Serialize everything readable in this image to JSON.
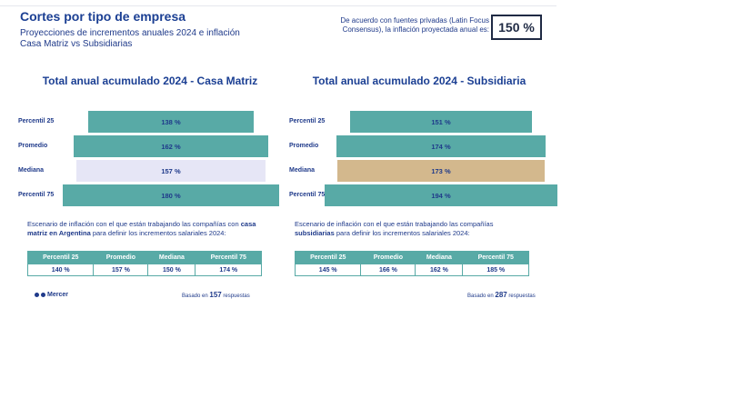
{
  "header": {
    "title": "Cortes por tipo de empresa",
    "subtitle": "Proyecciones de incrementos anuales 2024 e inflación Casa Matriz vs Subsidiarias",
    "inflation_note": "De acuerdo con fuentes privadas (Latin Focus Consensus), la inflación proyectada anual es:",
    "inflation_value": "150 %"
  },
  "chart_data": [
    {
      "type": "bar",
      "title": "Total anual acumulado 2024 - Casa Matriz",
      "categories": [
        "Percentil 25",
        "Promedio",
        "Mediana",
        "Percentil 75"
      ],
      "values": [
        138,
        162,
        157,
        180
      ],
      "labels": [
        "138 %",
        "162 %",
        "157 %",
        "180 %"
      ],
      "colors": [
        "#58aaa6",
        "#58aaa6",
        "#e6e6f6",
        "#58aaa6"
      ],
      "unit": "%"
    },
    {
      "type": "bar",
      "title": "Total anual acumulado 2024 - Subsidiaria",
      "categories": [
        "Percentil 25",
        "Promedio",
        "Mediana",
        "Percentil 75"
      ],
      "values": [
        151,
        174,
        173,
        194
      ],
      "labels": [
        "151 %",
        "174 %",
        "173 %",
        "194 %"
      ],
      "colors": [
        "#58aaa6",
        "#58aaa6",
        "#d3b88d",
        "#58aaa6"
      ],
      "unit": "%"
    }
  ],
  "left": {
    "scenario_pre": "Escenario de inflación con el que están trabajando las compañías con ",
    "scenario_bold": "casa matriz en Argentina",
    "scenario_post": " para definir los incrementos salariales 2024:",
    "table_headers": [
      "Percentil 25",
      "Promedio",
      "Mediana",
      "Percentil 75"
    ],
    "table_values": [
      "140 %",
      "157 %",
      "150 %",
      "174 %"
    ],
    "based_pre": "Basado en",
    "based_count": "157",
    "based_post": "respuestas"
  },
  "right": {
    "scenario_pre": "Escenario de inflación con el que están trabajando las compañías ",
    "scenario_bold": "subsidiarias",
    "scenario_post": " para definir los incrementos salariales 2024:",
    "table_headers": [
      "Percentil 25",
      "Promedio",
      "Mediana",
      "Percentil 75"
    ],
    "table_values": [
      "145 %",
      "166 %",
      "162 %",
      "185 %"
    ],
    "based_pre": "Basado en",
    "based_count": "287",
    "based_post": "respuestas"
  },
  "footer": {
    "logo": "Mercer"
  }
}
